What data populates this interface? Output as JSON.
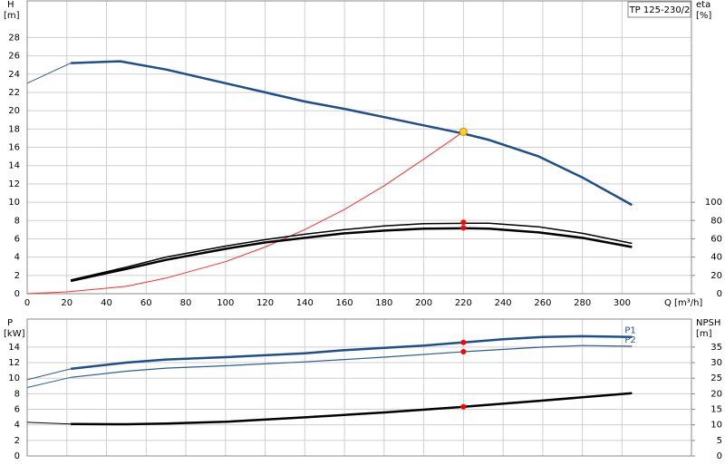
{
  "chart_data": [
    {
      "type": "line",
      "title": "TP 125-230/2",
      "ylabel": [
        "H",
        "[m]"
      ],
      "y2label": [
        "eta",
        "[%]"
      ],
      "xlabel": "Q [m³/h]",
      "xlim": [
        0,
        335
      ],
      "xticks": [
        0,
        20,
        40,
        60,
        80,
        100,
        120,
        140,
        160,
        180,
        200,
        220,
        240,
        260,
        280,
        300
      ],
      "ylim": [
        0,
        32
      ],
      "yticks": [
        0,
        2,
        4,
        6,
        8,
        10,
        12,
        14,
        16,
        18,
        20,
        22,
        24,
        26,
        28
      ],
      "y2lim": [
        0,
        320
      ],
      "y2ticks": [
        0,
        20,
        40,
        60,
        80,
        100
      ],
      "grid": true,
      "series": [
        {
          "color": "#2c5b96",
          "width": 1,
          "x": [
            0,
            22
          ],
          "values": [
            23,
            25.2
          ]
        },
        {
          "color": "#1f4e8c",
          "width": 2.5,
          "x": [
            22,
            47,
            70,
            100,
            120,
            140,
            160,
            180,
            200,
            220,
            233,
            258,
            280,
            305
          ],
          "values": [
            25.2,
            25.4,
            24.5,
            23,
            22,
            21,
            20.2,
            19.3,
            18.4,
            17.5,
            16.8,
            15,
            12.7,
            9.7
          ]
        },
        {
          "color": "#ff2a2a",
          "width": 1,
          "x": [
            0,
            20,
            50,
            70,
            100,
            120,
            140,
            160,
            180,
            200,
            220
          ],
          "values": [
            0,
            0.2,
            0.8,
            1.7,
            3.5,
            5.1,
            7,
            9.2,
            11.8,
            14.7,
            17.7
          ]
        },
        {
          "color": "#000000",
          "width": 1.5,
          "axis": "y2",
          "x": [
            22,
            50,
            70,
            100,
            120,
            140,
            160,
            180,
            200,
            220,
            233,
            258,
            280,
            305
          ],
          "values": [
            15,
            29,
            40,
            52,
            59,
            65,
            70,
            74,
            76.5,
            77,
            77,
            73,
            66,
            55
          ]
        },
        {
          "color": "#000000",
          "width": 2.5,
          "axis": "y2",
          "x": [
            22,
            50,
            70,
            100,
            120,
            140,
            160,
            180,
            200,
            220,
            233,
            258,
            280,
            305
          ],
          "values": [
            14,
            27,
            37,
            49,
            56,
            61,
            66,
            69,
            71,
            71.5,
            71,
            67,
            61,
            51
          ]
        }
      ],
      "points": [
        {
          "x": 220,
          "y": 17.7,
          "color": "#ffd21f"
        },
        {
          "x": 220,
          "y": 78,
          "color": "#ff0000",
          "axis": "y2"
        },
        {
          "x": 220,
          "y": 72,
          "color": "#ff0000",
          "axis": "y2"
        }
      ]
    },
    {
      "type": "line",
      "ylabel": [
        "P",
        "[kW]"
      ],
      "y2label": [
        "NPSH",
        "[m]"
      ],
      "xlim": [
        0,
        335
      ],
      "ylim": [
        0,
        17.6
      ],
      "yticks": [
        0,
        2,
        4,
        6,
        8,
        10,
        12,
        14
      ],
      "y2lim": [
        0,
        44
      ],
      "y2ticks": [
        0,
        5,
        10,
        15,
        20,
        25,
        30,
        35
      ],
      "grid": true,
      "series": [
        {
          "color": "#2c5b96",
          "width": 1,
          "x": [
            0,
            22
          ],
          "values": [
            9.8,
            11.2
          ]
        },
        {
          "name": "P1",
          "color": "#1f4e8c",
          "width": 2.5,
          "x": [
            22,
            50,
            70,
            100,
            140,
            160,
            200,
            220,
            240,
            260,
            280,
            305
          ],
          "values": [
            11.2,
            12.0,
            12.4,
            12.7,
            13.2,
            13.6,
            14.2,
            14.6,
            15.0,
            15.3,
            15.4,
            15.3
          ]
        },
        {
          "color": "#2c5b96",
          "width": 1,
          "x": [
            0,
            22
          ],
          "values": [
            8.8,
            10.1
          ]
        },
        {
          "name": "P2",
          "color": "#2c5b96",
          "width": 1.2,
          "x": [
            22,
            50,
            70,
            100,
            140,
            180,
            220,
            260,
            280,
            305
          ],
          "values": [
            10.1,
            10.9,
            11.3,
            11.6,
            12.1,
            12.7,
            13.4,
            14.0,
            14.2,
            14.1
          ]
        },
        {
          "color": "#000000",
          "width": 1,
          "axis": "y2",
          "x": [
            0,
            22
          ],
          "values": [
            10.8,
            10.3
          ]
        },
        {
          "color": "#000000",
          "width": 2.5,
          "axis": "y2",
          "x": [
            22,
            50,
            70,
            100,
            140,
            180,
            220,
            260,
            305
          ],
          "values": [
            10.3,
            10.2,
            10.4,
            11,
            12.4,
            14,
            15.8,
            17.8,
            20.2
          ]
        }
      ],
      "points": [
        {
          "x": 220,
          "y": 14.6,
          "color": "#ff0000"
        },
        {
          "x": 220,
          "y": 13.4,
          "color": "#ff0000"
        },
        {
          "x": 220,
          "y": 15.8,
          "color": "#ff0000",
          "axis": "y2"
        }
      ]
    }
  ]
}
